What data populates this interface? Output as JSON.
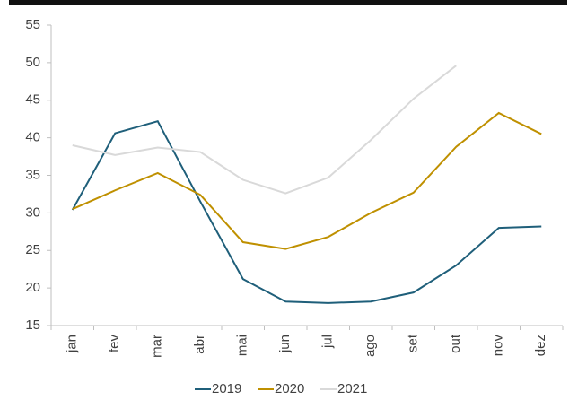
{
  "chart_data": {
    "type": "line",
    "categories": [
      "jan",
      "fev",
      "mar",
      "abr",
      "mai",
      "jun",
      "jul",
      "ago",
      "set",
      "out",
      "nov",
      "dez"
    ],
    "series": [
      {
        "name": "2019",
        "color": "#1f5f7a",
        "values": [
          30.4,
          40.6,
          42.2,
          31.5,
          21.2,
          18.2,
          18.0,
          18.2,
          19.4,
          23.0,
          28.0,
          28.2
        ]
      },
      {
        "name": "2020",
        "color": "#bf9000",
        "values": [
          30.5,
          33.0,
          35.3,
          32.4,
          26.1,
          25.2,
          26.8,
          30.0,
          32.7,
          38.8,
          43.3,
          40.5
        ]
      },
      {
        "name": "2021",
        "color": "#d9d9d9",
        "values": [
          39.0,
          37.7,
          38.7,
          38.1,
          34.4,
          32.6,
          34.7,
          39.7,
          45.2,
          49.6,
          null,
          null
        ]
      }
    ],
    "ylim": [
      15,
      55
    ],
    "yticks": [
      15,
      20,
      25,
      30,
      35,
      40,
      45,
      50,
      55
    ],
    "grid": false,
    "legend": "bottom"
  }
}
